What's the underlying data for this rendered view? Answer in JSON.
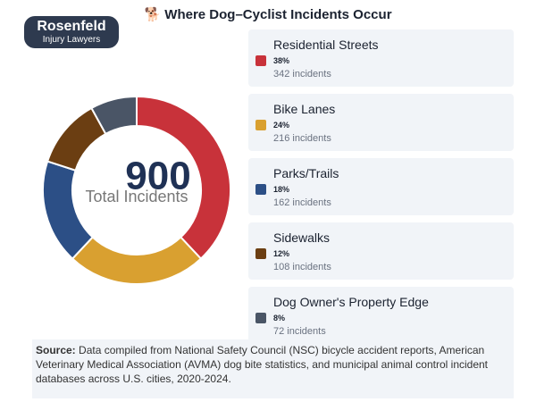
{
  "logo": {
    "name": "Rosenfeld",
    "tagline": "Injury Lawyers"
  },
  "chart_data": {
    "type": "donut",
    "title": "🐕 Where Dog–Cyclist Incidents Occur",
    "categories": [
      "Residential Streets",
      "Bike Lanes",
      "Parks/Trails",
      "Sidewalks",
      "Dog Owner's Property Edge"
    ],
    "values": [
      342,
      216,
      162,
      108,
      72
    ],
    "value_labels": [
      "342 incidents",
      "216 incidents",
      "162 incidents",
      "108 incidents",
      "72 incidents"
    ],
    "percents": [
      38,
      24,
      18,
      12,
      8
    ],
    "percent_labels": [
      "38%",
      "24%",
      "18%",
      "12%",
      "8%"
    ],
    "colors": [
      "#c8323a",
      "#d9a030",
      "#2c4f86",
      "#6b3e12",
      "#4a5566"
    ],
    "total": 900,
    "total_label": "Total Incidents"
  },
  "source": {
    "label": "Source:",
    "text": "Data compiled from National Safety Council (NSC) bicycle accident reports, American Veterinary Medical Association (AVMA) dog bite statistics, and municipal animal control incident databases across U.S. cities, 2020-2024."
  }
}
